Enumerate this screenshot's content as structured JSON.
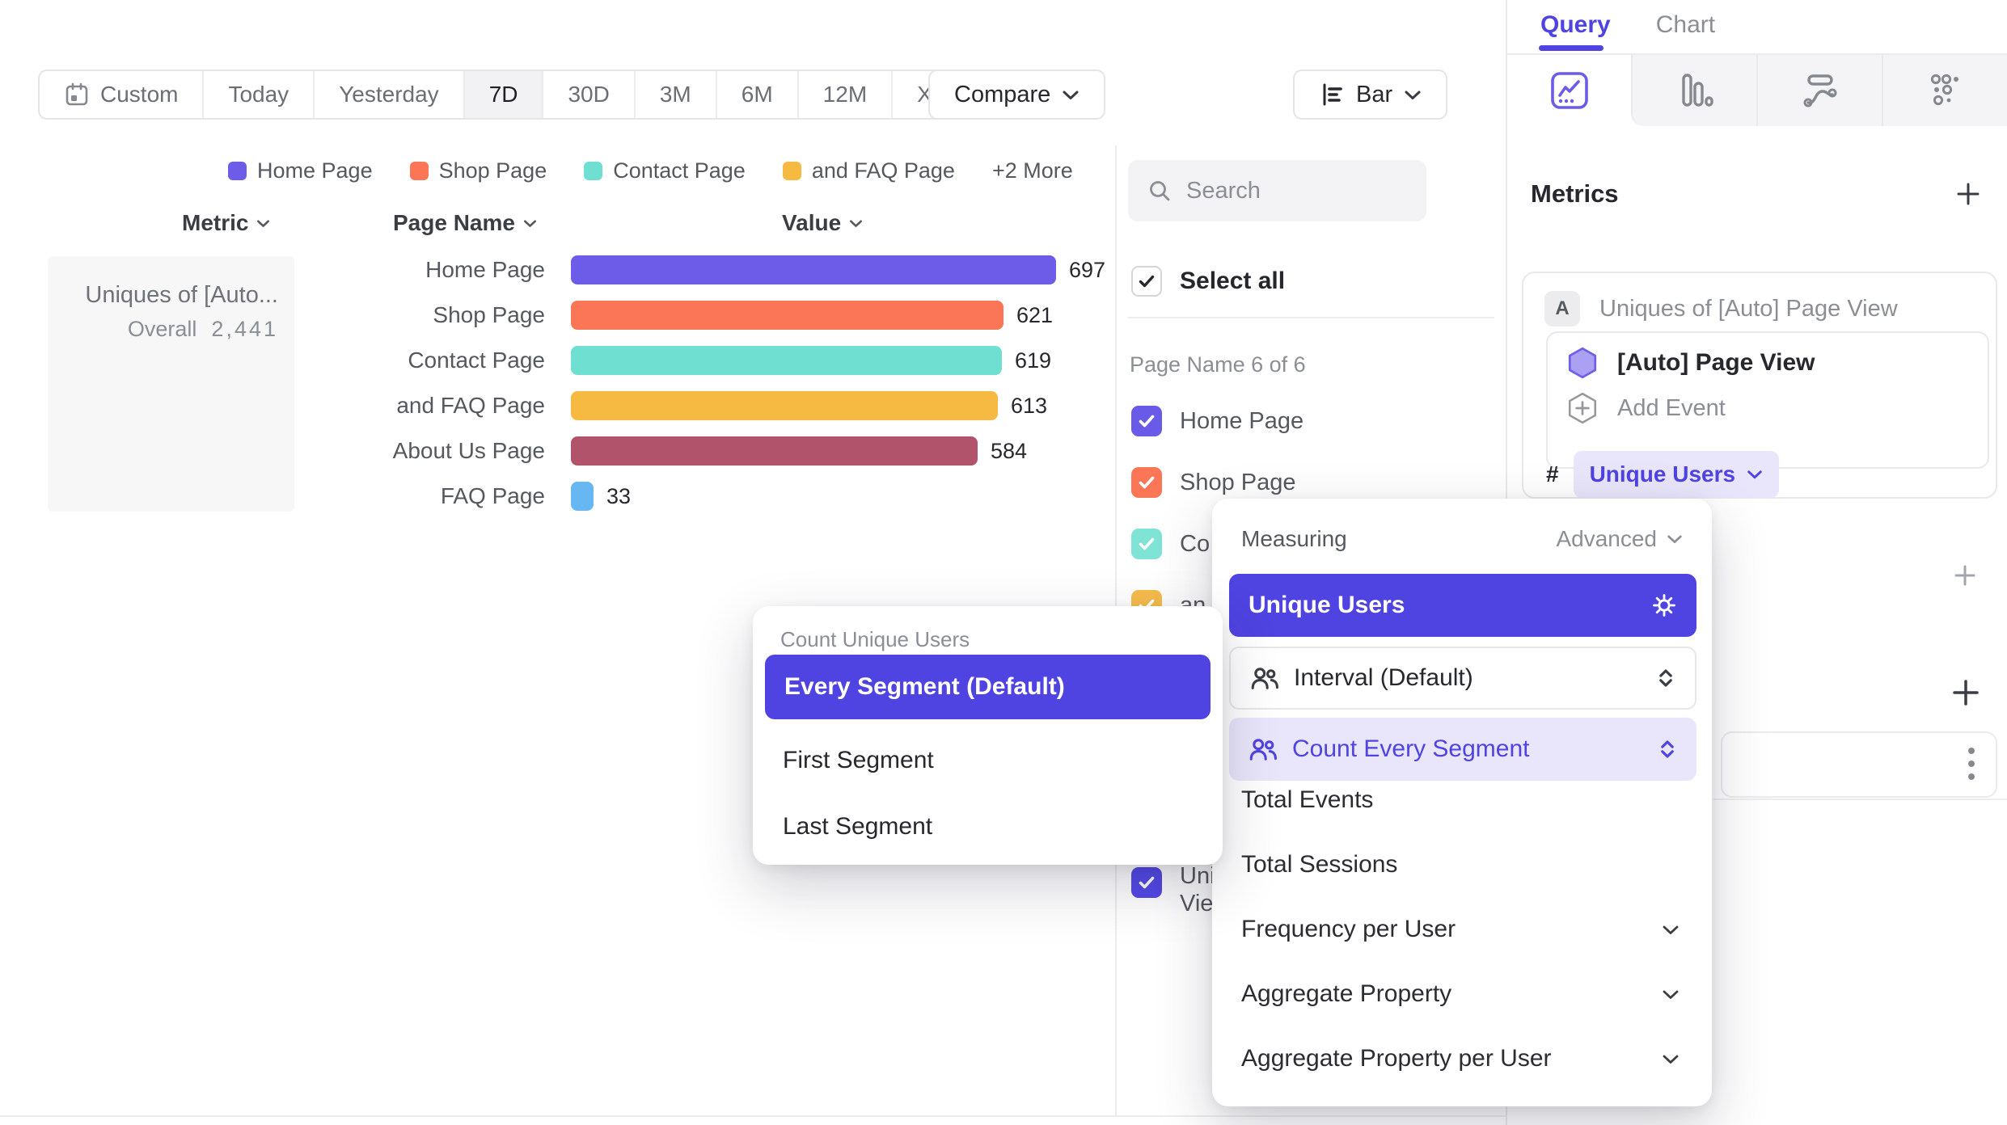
{
  "toolbar": {
    "date_ranges": [
      {
        "label": "Custom",
        "icon": "calendar-icon"
      },
      {
        "label": "Today"
      },
      {
        "label": "Yesterday"
      },
      {
        "label": "7D",
        "selected": true
      },
      {
        "label": "30D"
      },
      {
        "label": "3M"
      },
      {
        "label": "6M"
      },
      {
        "label": "12M"
      },
      {
        "label": "XTD",
        "chevron": true
      }
    ],
    "compare_label": "Compare",
    "chart_type_label": "Bar"
  },
  "legend": {
    "items": [
      {
        "label": "Home Page",
        "color": "#6C5CE7"
      },
      {
        "label": "Shop Page",
        "color": "#FB7557"
      },
      {
        "label": "Contact Page",
        "color": "#6FDFD2"
      },
      {
        "label": "and FAQ Page",
        "color": "#F6BA43"
      }
    ],
    "more_label": "+2 More"
  },
  "table_headers": {
    "metric": "Metric",
    "page_name": "Page Name",
    "value": "Value"
  },
  "metric_panel": {
    "title": "Uniques of [Auto...",
    "overall_label": "Overall",
    "overall_value": "2,441"
  },
  "chart_data": {
    "type": "bar",
    "orientation": "horizontal",
    "title": "",
    "xlabel": "Value",
    "ylabel": "Page Name",
    "xlim": [
      0,
      697
    ],
    "categories": [
      "Home Page",
      "Shop Page",
      "Contact Page",
      "and FAQ Page",
      "About Us Page",
      "FAQ Page"
    ],
    "values": [
      697,
      621,
      619,
      613,
      584,
      33
    ],
    "colors": [
      "#6C5CE7",
      "#FB7557",
      "#6FDFD2",
      "#F6BA43",
      "#B1536B",
      "#67B7F3"
    ],
    "overall_total": 2441,
    "metric": "Uniques of [Auto] Page View"
  },
  "filter_panel": {
    "search_placeholder": "Search",
    "select_all_label": "Select all",
    "group_label": "Page Name 6 of 6",
    "items": [
      {
        "label": "Home Page",
        "color": "#6A5AE8",
        "checked": true
      },
      {
        "label": "Shop Page",
        "color": "#FB7557",
        "checked": true
      },
      {
        "label": "Co",
        "color": "#7FE3D6",
        "checked": true
      },
      {
        "label": "an",
        "color": "#F6BC4C",
        "checked": true
      }
    ],
    "bottom_item": {
      "label_line1": "Uni",
      "label_line2": "Vie",
      "color": "#5348E8",
      "checked": true
    }
  },
  "sidebar": {
    "tabs": [
      {
        "label": "Query",
        "active": true
      },
      {
        "label": "Chart",
        "active": false
      }
    ],
    "metrics_heading": "Metrics",
    "metric_card": {
      "badge": "A",
      "title": "Uniques of [Auto] Page View",
      "event_name": "[Auto] Page View",
      "add_event_label": "Add Event",
      "hash": "#",
      "measure_chip_label": "Unique Users"
    }
  },
  "measuring_popover": {
    "title": "Measuring",
    "advanced_label": "Advanced",
    "selected_item": "Unique Users",
    "interval_label": "Interval (Default)",
    "count_segment_label": "Count Every Segment",
    "items": [
      {
        "label": "Total Events",
        "chevron": false
      },
      {
        "label": "Total Sessions",
        "chevron": false
      },
      {
        "label": "Frequency per User",
        "chevron": true
      },
      {
        "label": "Aggregate Property",
        "chevron": true
      },
      {
        "label": "Aggregate Property per User",
        "chevron": true
      }
    ]
  },
  "segment_popover": {
    "title": "Count Unique Users",
    "selected_item": "Every Segment (Default)",
    "items": [
      "First Segment",
      "Last Segment"
    ]
  },
  "colors": {
    "accent": "#4F43E1",
    "accent_soft": "#E9E6FB"
  }
}
